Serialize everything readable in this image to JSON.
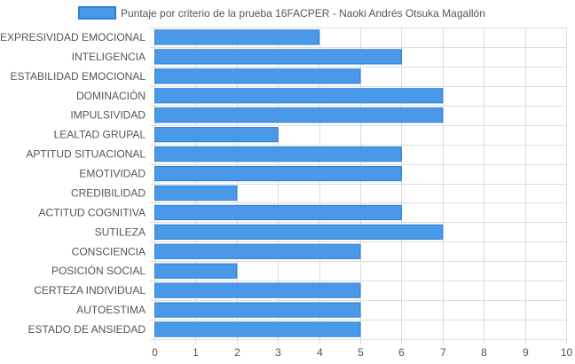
{
  "chart_data": {
    "type": "bar",
    "orientation": "horizontal",
    "categories": [
      "EXPRESIVIDAD EMOCIONAL",
      "INTELIGENCIA",
      "ESTABILIDAD EMOCIONAL",
      "DOMINACIÓN",
      "IMPULSIVIDAD",
      "LEALTAD GRUPAL",
      "APTITUD SITUACIONAL",
      "EMOTIVIDAD",
      "CREDIBILIDAD",
      "ACTITUD COGNITIVA",
      "SUTILEZA",
      "CONSCIENCIA",
      "POSICIÓN SOCIAL",
      "CERTEZA INDIVIDUAL",
      "AUTOESTIMA",
      "ESTADO DE ANSIEDAD"
    ],
    "series": [
      {
        "name": "Puntaje por criterio de la prueba 16FACPER - Naoki Andrés Otsuka Magallón",
        "values": [
          4,
          6,
          5,
          7,
          7,
          3,
          6,
          6,
          2,
          6,
          7,
          5,
          2,
          5,
          5,
          5
        ]
      }
    ],
    "xlim": [
      0,
      10
    ],
    "xticks": [
      "0",
      "1",
      "2",
      "3",
      "4",
      "5",
      "6",
      "7",
      "8",
      "9",
      "10"
    ],
    "grid": true,
    "legend_position": "top",
    "colors": {
      "bar_fill": "#4a98e8",
      "bar_border": "#2f7fd8",
      "grid": "#dddddd",
      "text": "#555555"
    }
  }
}
